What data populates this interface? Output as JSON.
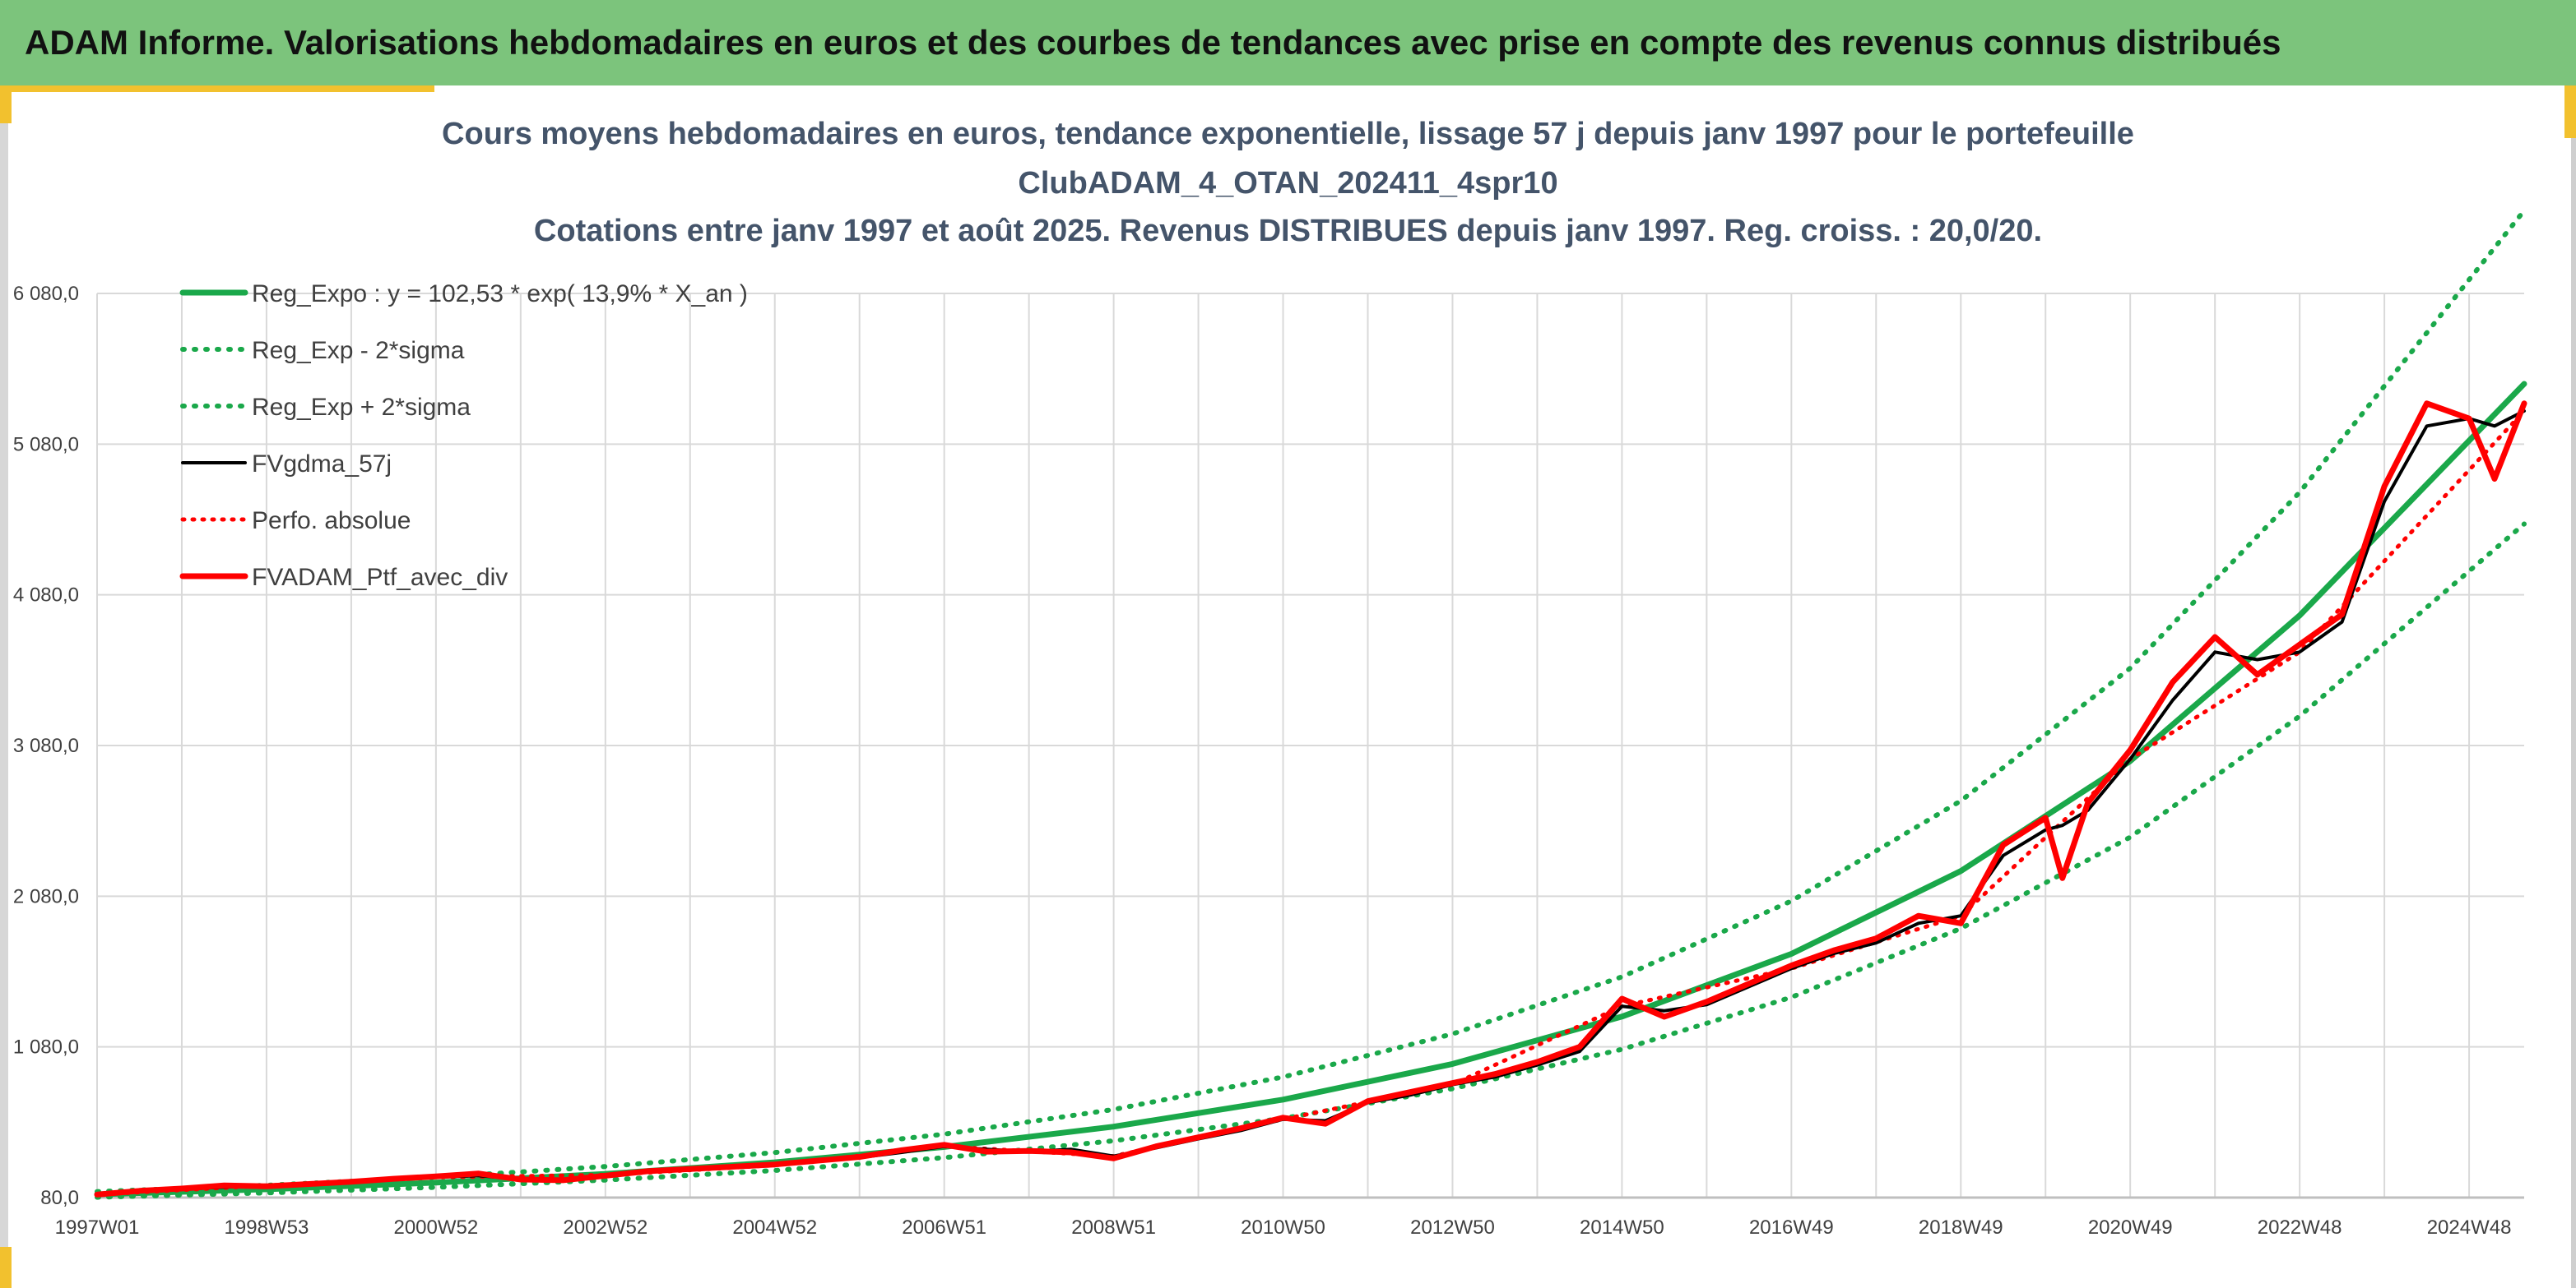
{
  "header": {
    "title": "ADAM Informe. Valorisations hebdomadaires en euros et des courbes de tendances avec prise en compte des revenus connus distribués"
  },
  "colors": {
    "banner": "#7cc47c",
    "accent": "#f2c12e",
    "title": "#44546a",
    "trend": "#1aa84a",
    "smoothed": "#000000",
    "portfolio": "#ff0000",
    "grid": "#d9d9d9"
  },
  "chart_data": {
    "type": "line",
    "title_lines": [
      "Cours moyens hebdomadaires en euros, tendance exponentielle, lissage 57 j depuis janv 1997 pour le portefeuille",
      "ClubADAM_4_OTAN_202411_4spr10",
      "Cotations entre janv 1997 et août 2025. Revenus DISTRIBUES depuis janv 1997. Reg. croiss. : 20,0/20."
    ],
    "xlabel": "",
    "ylabel": "",
    "x_range": [
      1997.0,
      2025.65
    ],
    "ylim": [
      80,
      6080
    ],
    "y_ticks": [
      80,
      1080,
      2080,
      3080,
      4080,
      5080,
      6080
    ],
    "y_tick_labels": [
      "80,0",
      "1 080,0",
      "2 080,0",
      "3 080,0",
      "4 080,0",
      "5 080,0",
      "6 080,0"
    ],
    "x_ticks": [
      1997.0,
      1999.0,
      2001.0,
      2003.0,
      2005.0,
      2007.0,
      2009.0,
      2011.0,
      2013.0,
      2015.0,
      2017.0,
      2019.0,
      2021.0,
      2023.0,
      2025.0
    ],
    "x_tick_labels": [
      "1997W01",
      "1998W53",
      "2000W52",
      "2002W52",
      "2004W52",
      "2006W51",
      "2008W51",
      "2010W50",
      "2012W50",
      "2014W50",
      "2016W49",
      "2018W49",
      "2020W49",
      "2022W48",
      "2024W48"
    ],
    "grid": true,
    "legend_position": "top-left",
    "series": [
      {
        "name": "Reg_Expo : y = 102,53 * exp( 13,9% *  X_an )",
        "style": "solid-green-thick",
        "x": [
          1997.0,
          1999.0,
          2001.0,
          2003.0,
          2005.0,
          2007.0,
          2009.0,
          2011.0,
          2013.0,
          2015.0,
          2017.0,
          2019.0,
          2021.0,
          2023.0,
          2025.65
        ],
        "y": [
          102,
          135,
          179,
          237,
          314,
          416,
          551,
          730,
          967,
          1281,
          1697,
          2247,
          2977,
          3943,
          5480
        ]
      },
      {
        "name": "Reg_Exp - 2*sigma",
        "style": "dotted-green",
        "x": [
          1997.0,
          1999.0,
          2001.0,
          2003.0,
          2005.0,
          2007.0,
          2009.0,
          2011.0,
          2013.0,
          2015.0,
          2017.0,
          2019.0,
          2021.0,
          2023.0,
          2025.65
        ],
        "y": [
          82,
          111,
          148,
          196,
          260,
          345,
          457,
          606,
          803,
          1064,
          1409,
          1866,
          2472,
          3275,
          4550
        ]
      },
      {
        "name": "Reg_Exp + 2*sigma",
        "style": "dotted-green",
        "x": [
          1997.0,
          1999.0,
          2001.0,
          2003.0,
          2005.0,
          2007.0,
          2009.0,
          2011.0,
          2013.0,
          2015.0,
          2017.0,
          2019.0,
          2021.0,
          2023.0,
          2025.65
        ],
        "y": [
          120,
          162,
          215,
          286,
          379,
          501,
          665,
          880,
          1166,
          1545,
          2048,
          2713,
          3593,
          4760,
          6630
        ]
      },
      {
        "name": "FVgdma_57j",
        "style": "solid-black",
        "x": [
          1997.0,
          1997.5,
          1998.0,
          1998.5,
          1999.0,
          1999.5,
          2000.0,
          2000.5,
          2001.0,
          2001.5,
          2002.0,
          2002.5,
          2003.0,
          2003.5,
          2004.0,
          2005.0,
          2006.0,
          2006.5,
          2007.0,
          2007.5,
          2008.0,
          2008.5,
          2009.0,
          2009.5,
          2010.0,
          2010.5,
          2011.0,
          2011.5,
          2012.0,
          2012.5,
          2013.0,
          2013.5,
          2014.0,
          2014.5,
          2015.0,
          2015.5,
          2016.0,
          2016.5,
          2017.0,
          2017.5,
          2018.0,
          2018.5,
          2019.0,
          2019.5,
          2020.0,
          2020.2,
          2020.5,
          2021.0,
          2021.5,
          2022.0,
          2022.5,
          2023.0,
          2023.5,
          2024.0,
          2024.5,
          2025.0,
          2025.3,
          2025.65
        ],
        "y": [
          100,
          120,
          135,
          150,
          160,
          165,
          180,
          200,
          215,
          225,
          205,
          200,
          230,
          250,
          265,
          295,
          345,
          380,
          420,
          400,
          385,
          400,
          355,
          410,
          470,
          525,
          600,
          590,
          710,
          760,
          830,
          880,
          960,
          1050,
          1350,
          1320,
          1360,
          1480,
          1600,
          1700,
          1770,
          1900,
          1950,
          2350,
          2520,
          2550,
          2650,
          2990,
          3380,
          3700,
          3650,
          3700,
          3900,
          4700,
          5200,
          5250,
          5200,
          5300
        ]
      },
      {
        "name": "Perfo. absolue",
        "style": "dotted-red",
        "x": [
          1997.0,
          1999.0,
          2001.0,
          2003.0,
          2005.0,
          2007.0,
          2009.0,
          2011.0,
          2013.0,
          2015.0,
          2017.0,
          2019.0,
          2021.0,
          2023.0,
          2025.65
        ],
        "y": [
          100,
          160,
          215,
          230,
          295,
          420,
          355,
          600,
          830,
          1350,
          1600,
          1950,
          2990,
          3700,
          5300
        ]
      },
      {
        "name": "FVADAM_Ptf_avec_div",
        "style": "solid-red-thick",
        "x": [
          1997.0,
          1997.5,
          1998.0,
          1998.5,
          1999.0,
          1999.5,
          2000.0,
          2000.5,
          2001.0,
          2001.5,
          2002.0,
          2002.5,
          2003.0,
          2003.5,
          2004.0,
          2005.0,
          2006.0,
          2006.5,
          2007.0,
          2007.5,
          2008.0,
          2008.5,
          2009.0,
          2009.5,
          2010.0,
          2010.5,
          2011.0,
          2011.5,
          2012.0,
          2012.5,
          2013.0,
          2013.5,
          2014.0,
          2014.5,
          2015.0,
          2015.5,
          2016.0,
          2016.5,
          2017.0,
          2017.5,
          2018.0,
          2018.5,
          2019.0,
          2019.5,
          2020.0,
          2020.2,
          2020.5,
          2021.0,
          2021.5,
          2022.0,
          2022.5,
          2023.0,
          2023.5,
          2024.0,
          2024.5,
          2025.0,
          2025.3,
          2025.65
        ],
        "y": [
          100,
          125,
          140,
          160,
          155,
          170,
          185,
          205,
          220,
          240,
          200,
          195,
          225,
          255,
          270,
          300,
          350,
          395,
          430,
          385,
          390,
          380,
          340,
          420,
          480,
          540,
          610,
          570,
          720,
          780,
          840,
          900,
          980,
          1080,
          1400,
          1280,
          1380,
          1500,
          1620,
          1720,
          1800,
          1950,
          1900,
          2420,
          2600,
          2200,
          2700,
          3050,
          3500,
          3800,
          3550,
          3750,
          3950,
          4800,
          5350,
          5250,
          4850,
          5350
        ]
      }
    ]
  }
}
